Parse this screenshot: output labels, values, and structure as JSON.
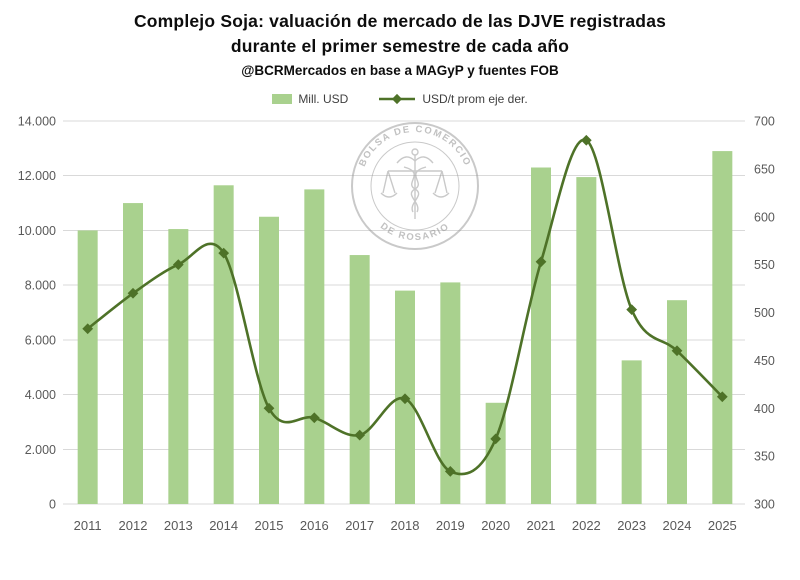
{
  "header": {
    "title_line1": "Complejo Soja: valuación de mercado de las DJVE registradas",
    "title_line2": "durante el primer semestre de cada año",
    "subtitle": "@BCRMercados en base a MAGyP y fuentes FOB"
  },
  "legend": {
    "bar_label": "Mill. USD",
    "line_label": "USD/t prom eje der."
  },
  "watermark": {
    "top_text": "BOLSA DE COMERCIO",
    "bottom_text": "DE ROSARIO"
  },
  "chart_data": {
    "type": "bar",
    "subtype": "combo-bar-line",
    "categories": [
      "2011",
      "2012",
      "2013",
      "2014",
      "2015",
      "2016",
      "2017",
      "2018",
      "2019",
      "2020",
      "2021",
      "2022",
      "2023",
      "2024",
      "2025"
    ],
    "series": [
      {
        "name": "Mill. USD",
        "type": "bar",
        "axis": "left",
        "color": "#a9d18e",
        "values": [
          10000,
          11000,
          10050,
          11650,
          10500,
          11500,
          9100,
          7800,
          8100,
          3700,
          12300,
          11950,
          5250,
          7450,
          12900
        ]
      },
      {
        "name": "USD/t prom eje der.",
        "type": "line",
        "axis": "right",
        "color": "#4e7228",
        "marker": "diamond",
        "values": [
          483,
          520,
          550,
          562,
          400,
          390,
          372,
          410,
          334,
          368,
          553,
          680,
          503,
          460,
          412
        ]
      }
    ],
    "left_axis": {
      "min": 0,
      "max": 14000,
      "tick_step": 2000,
      "tick_labels": [
        "0",
        "2.000",
        "4.000",
        "6.000",
        "8.000",
        "10.000",
        "12.000",
        "14.000"
      ]
    },
    "right_axis": {
      "min": 300,
      "max": 700,
      "tick_step": 50,
      "tick_labels": [
        "300",
        "350",
        "400",
        "450",
        "500",
        "550",
        "600",
        "650",
        "700"
      ]
    },
    "grid": true,
    "legend_position": "top",
    "title": "Complejo Soja: valuación de mercado de las DJVE registradas durante el primer semestre de cada año",
    "xlabel": "",
    "ylabel_left": "Mill. USD",
    "ylabel_right": "USD/t prom eje der."
  }
}
